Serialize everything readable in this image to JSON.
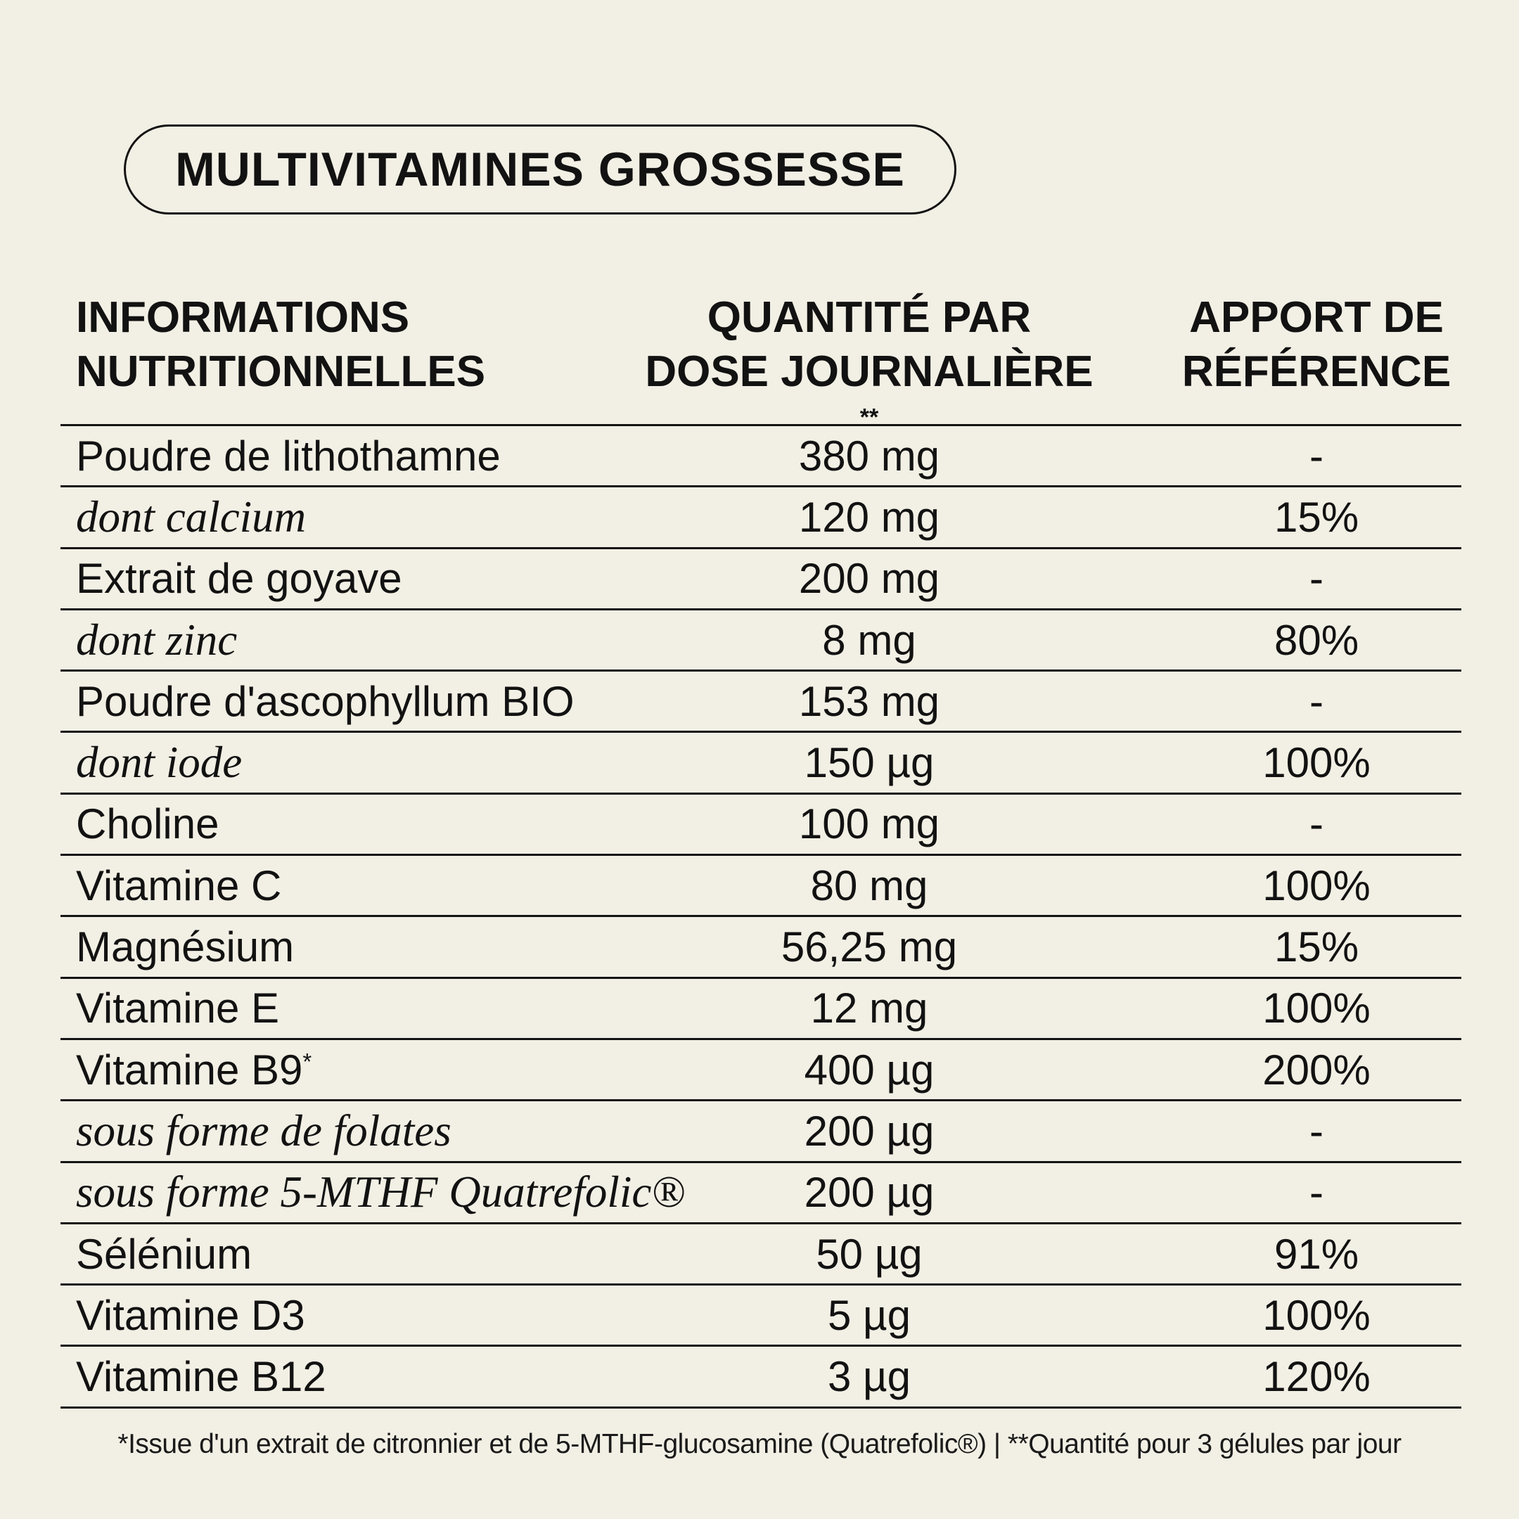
{
  "page": {
    "background_color": "#f2efe4",
    "text_color": "#121212"
  },
  "badge": {
    "title": "MULTIVITAMINES GROSSESSE"
  },
  "table": {
    "headers": {
      "col1": {
        "line1": "INFORMATIONS",
        "line2": "NUTRITIONNELLES"
      },
      "col2": {
        "line1": "QUANTITÉ PAR",
        "line2": "DOSE JOURNALIÈRE",
        "sup": "**"
      },
      "col3": {
        "line1": "APPORT DE",
        "line2": "RÉFÉRENCE"
      }
    },
    "rows": [
      {
        "label": "Poudre de lithothamne",
        "sup": "",
        "italic": false,
        "quantity": "380 mg",
        "reference": "-"
      },
      {
        "label": "dont calcium",
        "sup": "",
        "italic": true,
        "quantity": "120 mg",
        "reference": "15%"
      },
      {
        "label": "Extrait de goyave",
        "sup": "",
        "italic": false,
        "quantity": "200 mg",
        "reference": "-"
      },
      {
        "label": "dont zinc",
        "sup": "",
        "italic": true,
        "quantity": "8 mg",
        "reference": "80%"
      },
      {
        "label": "Poudre d'ascophyllum BIO",
        "sup": "",
        "italic": false,
        "quantity": "153 mg",
        "reference": "-"
      },
      {
        "label": "dont iode",
        "sup": "",
        "italic": true,
        "quantity": "150 µg",
        "reference": "100%"
      },
      {
        "label": "Choline",
        "sup": "",
        "italic": false,
        "quantity": "100 mg",
        "reference": "-"
      },
      {
        "label": "Vitamine C",
        "sup": "",
        "italic": false,
        "quantity": "80 mg",
        "reference": "100%"
      },
      {
        "label": "Magnésium",
        "sup": "",
        "italic": false,
        "quantity": "56,25 mg",
        "reference": "15%"
      },
      {
        "label": "Vitamine E",
        "sup": "",
        "italic": false,
        "quantity": "12 mg",
        "reference": "100%"
      },
      {
        "label": "Vitamine B9",
        "sup": "*",
        "italic": false,
        "quantity": "400 µg",
        "reference": "200%"
      },
      {
        "label": "sous forme de folates",
        "sup": "",
        "italic": true,
        "quantity": "200 µg",
        "reference": "-"
      },
      {
        "label": "sous forme 5-MTHF Quatrefolic®",
        "sup": "",
        "italic": true,
        "quantity": "200 µg",
        "reference": "-"
      },
      {
        "label": "Sélénium",
        "sup": "",
        "italic": false,
        "quantity": "50 µg",
        "reference": "91%"
      },
      {
        "label": "Vitamine D3",
        "sup": "",
        "italic": false,
        "quantity": "5 µg",
        "reference": "100%"
      },
      {
        "label": "Vitamine B12",
        "sup": "",
        "italic": false,
        "quantity": "3 µg",
        "reference": "120%"
      }
    ]
  },
  "footnote": "*Issue d'un extrait de citronnier et de 5-MTHF-glucosamine (Quatrefolic®) | **Quantité pour 3 gélules par jour"
}
